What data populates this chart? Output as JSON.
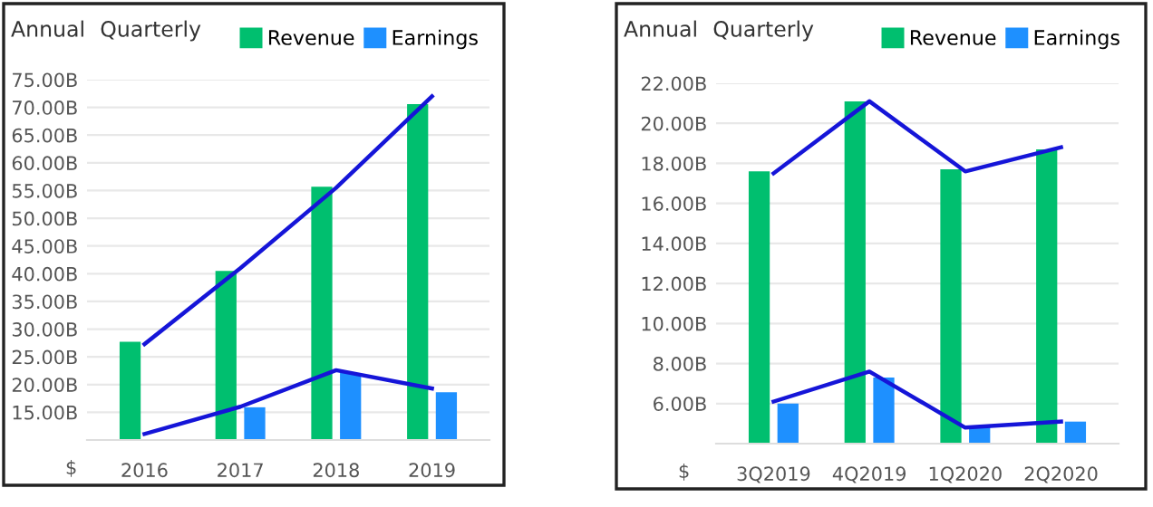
{
  "chart_data": [
    {
      "type": "bar",
      "categories": [
        "2016",
        "2017",
        "2018",
        "2019"
      ],
      "ylim": [
        10,
        75
      ],
      "yticks": [
        {
          "value": 15,
          "label": "15.00B"
        },
        {
          "value": 20,
          "label": "20.00B"
        },
        {
          "value": 25,
          "label": "25.00B"
        },
        {
          "value": 30,
          "label": "30.00B"
        },
        {
          "value": 35,
          "label": "35.00B"
        },
        {
          "value": 40,
          "label": "40.00B"
        },
        {
          "value": 45,
          "label": "45.00B"
        },
        {
          "value": 50,
          "label": "50.00B"
        },
        {
          "value": 55,
          "label": "55.00B"
        },
        {
          "value": 60,
          "label": "60.00B"
        },
        {
          "value": 65,
          "label": "65.00B"
        },
        {
          "value": 70,
          "label": "70.00B"
        },
        {
          "value": 75,
          "label": "75.00B"
        }
      ],
      "grid": "y",
      "legend": "top right",
      "annotations": [
        "Annual",
        "Quarterly",
        "$"
      ],
      "series": [
        {
          "name": "Revenue",
          "color": "#00bf6f",
          "values": [
            27.7,
            40.5,
            55.7,
            70.6
          ]
        },
        {
          "name": "Earnings",
          "color": "#1e90ff",
          "values": [
            null,
            15.9,
            22.1,
            18.6
          ]
        },
        {
          "type": "line",
          "color": "#1515d8",
          "values": [
            27.3,
            41.0,
            55.5,
            72.0
          ]
        },
        {
          "type": "line",
          "color": "#1515d8",
          "values": [
            11.1,
            16.0,
            22.6,
            19.3
          ]
        }
      ]
    },
    {
      "type": "bar",
      "categories": [
        "3Q2019",
        "4Q2019",
        "1Q2020",
        "2Q2020"
      ],
      "ylim": [
        4,
        22
      ],
      "yticks": [
        {
          "value": 6,
          "label": "6.00B"
        },
        {
          "value": 8,
          "label": "8.00B"
        },
        {
          "value": 10,
          "label": "10.00B"
        },
        {
          "value": 12,
          "label": "12.00B"
        },
        {
          "value": 14,
          "label": "14.00B"
        },
        {
          "value": 16,
          "label": "16.00B"
        },
        {
          "value": 18,
          "label": "18.00B"
        },
        {
          "value": 20,
          "label": "20.00B"
        },
        {
          "value": 22,
          "label": "22.00B"
        }
      ],
      "grid": "y",
      "legend": "top right",
      "annotations": [
        "Annual",
        "Quarterly",
        "$"
      ],
      "series": [
        {
          "name": "Revenue",
          "color": "#00bf6f",
          "values": [
            17.6,
            21.1,
            17.7,
            18.7
          ]
        },
        {
          "name": "Earnings",
          "color": "#1e90ff",
          "values": [
            6.0,
            7.3,
            4.9,
            5.1
          ]
        },
        {
          "type": "line",
          "color": "#1515d8",
          "values": [
            17.5,
            21.1,
            17.6,
            18.8
          ]
        },
        {
          "type": "line",
          "color": "#1515d8",
          "values": [
            6.1,
            7.6,
            4.8,
            5.1
          ]
        }
      ]
    }
  ]
}
